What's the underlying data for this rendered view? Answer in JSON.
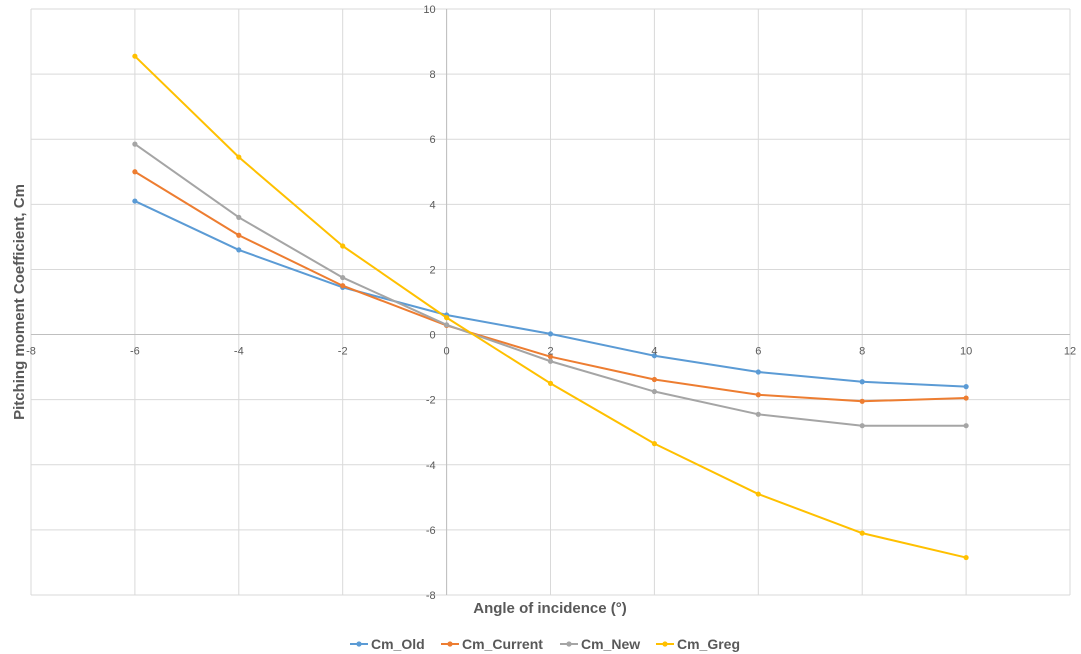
{
  "chart_data": {
    "type": "line",
    "title": "",
    "xlabel": "Angle of incidence (°)",
    "ylabel": "Pitching moment Coefficient, Cm",
    "xlim": [
      -8,
      12
    ],
    "ylim": [
      -8,
      10
    ],
    "xticks": [
      -8,
      -6,
      -4,
      -2,
      0,
      2,
      4,
      6,
      8,
      10,
      12
    ],
    "yticks": [
      -8,
      -6,
      -4,
      -2,
      0,
      2,
      4,
      6,
      8,
      10
    ],
    "grid": true,
    "legend_position": "bottom",
    "x": [
      -6,
      -4,
      -2,
      0,
      2,
      4,
      6,
      8,
      10
    ],
    "series": [
      {
        "name": "Cm_Old",
        "color": "#5B9BD5",
        "values": [
          4.1,
          2.6,
          1.45,
          0.6,
          0.02,
          -0.65,
          -1.15,
          -1.45,
          -1.6
        ]
      },
      {
        "name": "Cm_Current",
        "color": "#ED7D31",
        "values": [
          5.0,
          3.05,
          1.5,
          0.28,
          -0.68,
          -1.38,
          -1.85,
          -2.05,
          -1.95
        ]
      },
      {
        "name": "Cm_New",
        "color": "#A5A5A5",
        "values": [
          5.85,
          3.6,
          1.75,
          0.3,
          -0.82,
          -1.75,
          -2.45,
          -2.8,
          -2.8
        ]
      },
      {
        "name": "Cm_Greg",
        "color": "#FFC000",
        "values": [
          8.55,
          5.45,
          2.72,
          0.52,
          -1.5,
          -3.35,
          -4.9,
          -6.1,
          -6.85
        ]
      }
    ]
  }
}
